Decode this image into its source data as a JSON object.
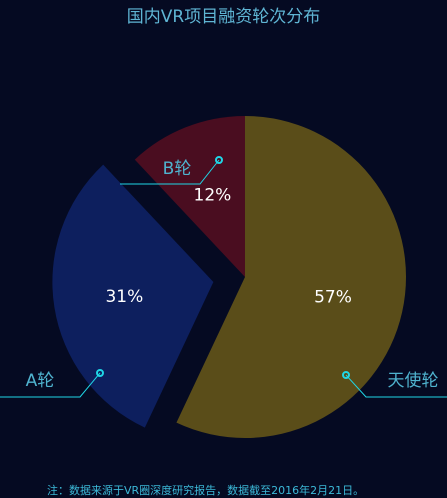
{
  "title": "国内VR项目融资轮次分布",
  "note": "注：数据来源于VR圈深度研究报告，数据截至2016年2月21日。",
  "colors": {
    "background": "#050a22",
    "accent": "#1fd6e6",
    "label_text": "#4fb3cf"
  },
  "chart_data": {
    "type": "pie",
    "title": "国内VR项目融资轮次分布",
    "slices": [
      {
        "name": "天使轮",
        "value": 57,
        "label": "57%",
        "color": "#5a4d19",
        "exploded": false
      },
      {
        "name": "A轮",
        "value": 31,
        "label": "31%",
        "color": "#0d1f5e",
        "exploded": true
      },
      {
        "name": "B轮",
        "value": 12,
        "label": "12%",
        "color": "#4a0d20",
        "exploded": false
      }
    ],
    "start_angle": "12 o'clock",
    "direction": "clockwise"
  }
}
